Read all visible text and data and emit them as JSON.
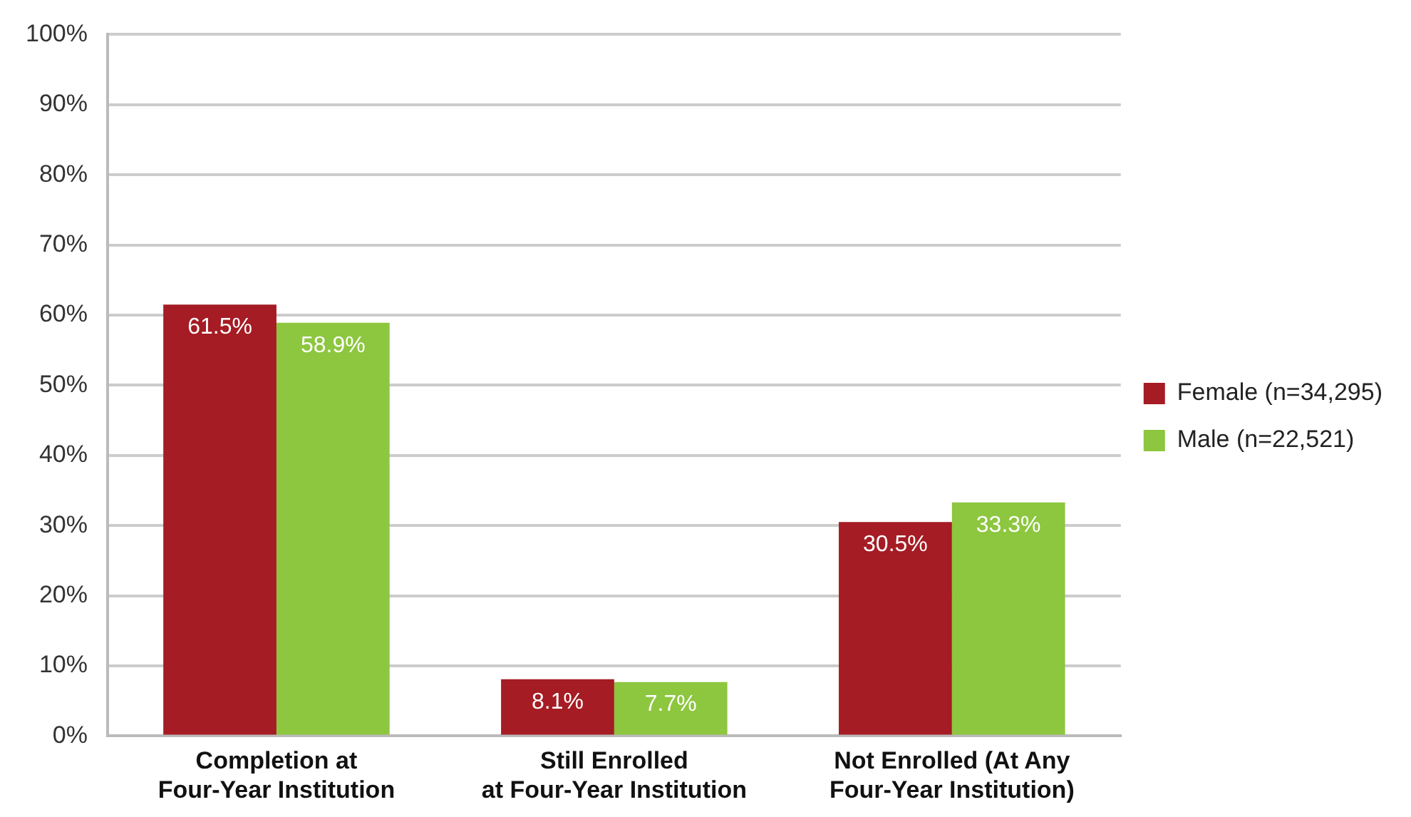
{
  "chart_data": {
    "type": "bar",
    "categories": [
      "Completion at\nFour-Year Institution",
      "Still Enrolled\nat Four-Year Institution",
      "Not Enrolled (At Any\nFour-Year Institution)"
    ],
    "series": [
      {
        "name": "Female (n=34,295)",
        "color": "#a51c24",
        "values": [
          61.5,
          8.1,
          30.5
        ],
        "value_labels": [
          "61.5%",
          "8.1%",
          "30.5%"
        ]
      },
      {
        "name": "Male (n=22,521)",
        "color": "#8dc63f",
        "values": [
          58.9,
          7.7,
          33.3
        ],
        "value_labels": [
          "58.9%",
          "7.7%",
          "33.3%"
        ]
      }
    ],
    "ylim": [
      0,
      100
    ],
    "yticks": [
      {
        "value": 0,
        "label": "0%"
      },
      {
        "value": 10,
        "label": "10%"
      },
      {
        "value": 20,
        "label": "20%"
      },
      {
        "value": 30,
        "label": "30%"
      },
      {
        "value": 40,
        "label": "40%"
      },
      {
        "value": 50,
        "label": "50%"
      },
      {
        "value": 60,
        "label": "60%"
      },
      {
        "value": 70,
        "label": "70%"
      },
      {
        "value": 80,
        "label": "80%"
      },
      {
        "value": 90,
        "label": "90%"
      },
      {
        "value": 100,
        "label": "100%"
      }
    ],
    "grid": "y",
    "legend": "right"
  }
}
